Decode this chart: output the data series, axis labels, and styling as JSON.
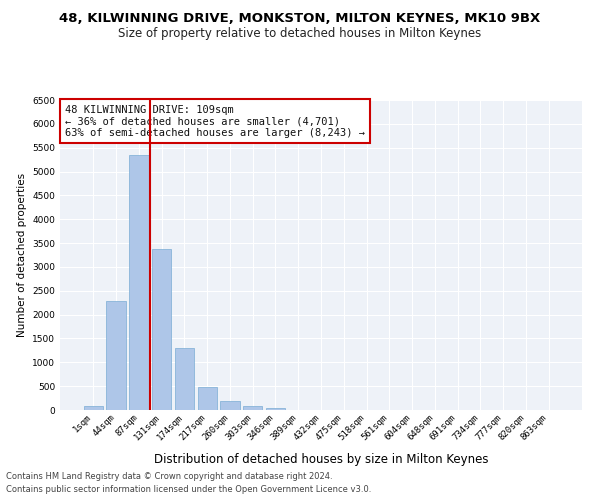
{
  "title1": "48, KILWINNING DRIVE, MONKSTON, MILTON KEYNES, MK10 9BX",
  "title2": "Size of property relative to detached houses in Milton Keynes",
  "xlabel": "Distribution of detached houses by size in Milton Keynes",
  "ylabel": "Number of detached properties",
  "categories": [
    "1sqm",
    "44sqm",
    "87sqm",
    "131sqm",
    "174sqm",
    "217sqm",
    "260sqm",
    "303sqm",
    "346sqm",
    "389sqm",
    "432sqm",
    "475sqm",
    "518sqm",
    "561sqm",
    "604sqm",
    "648sqm",
    "691sqm",
    "734sqm",
    "777sqm",
    "820sqm",
    "863sqm"
  ],
  "values": [
    75,
    2280,
    5350,
    3380,
    1300,
    480,
    190,
    80,
    50,
    0,
    0,
    0,
    0,
    0,
    0,
    0,
    0,
    0,
    0,
    0,
    0
  ],
  "bar_color": "#aec6e8",
  "bar_edge_color": "#7aadd4",
  "vline_x_idx": 2,
  "vline_color": "#cc0000",
  "annotation_text": "48 KILWINNING DRIVE: 109sqm\n← 36% of detached houses are smaller (4,701)\n63% of semi-detached houses are larger (8,243) →",
  "annotation_box_color": "white",
  "annotation_box_edge": "#cc0000",
  "ylim": [
    0,
    6500
  ],
  "yticks": [
    0,
    500,
    1000,
    1500,
    2000,
    2500,
    3000,
    3500,
    4000,
    4500,
    5000,
    5500,
    6000,
    6500
  ],
  "footer1": "Contains HM Land Registry data © Crown copyright and database right 2024.",
  "footer2": "Contains public sector information licensed under the Open Government Licence v3.0.",
  "bg_color": "#eef2f8",
  "grid_color": "white",
  "title1_fontsize": 9.5,
  "title2_fontsize": 8.5,
  "xlabel_fontsize": 8.5,
  "ylabel_fontsize": 7.5,
  "tick_fontsize": 6.5,
  "annot_fontsize": 7.5,
  "footer_fontsize": 6.0
}
